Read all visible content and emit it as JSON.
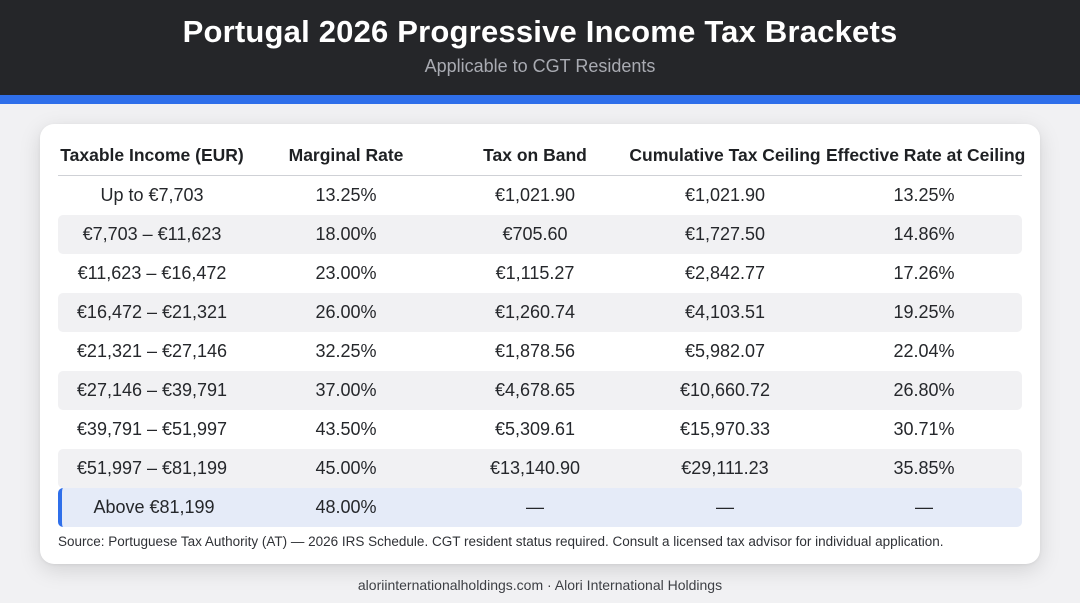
{
  "header": {
    "title": "Portugal 2026 Progressive Income Tax Brackets",
    "subtitle": "Applicable to CGT Residents"
  },
  "colors": {
    "header_bg": "#252629",
    "accent": "#2f6fea",
    "highlight_row": "#e5ebf8",
    "stripe": "#f1f1f3"
  },
  "table": {
    "columns": [
      "Taxable Income (EUR)",
      "Marginal Rate",
      "Tax on Band",
      "Cumulative Tax Ceiling",
      "Effective Rate at Ceiling"
    ],
    "rows": [
      [
        "Up to €7,703",
        "13.25%",
        "€1,021.90",
        "€1,021.90",
        "13.25%"
      ],
      [
        "€7,703 – €11,623",
        "18.00%",
        "€705.60",
        "€1,727.50",
        "14.86%"
      ],
      [
        "€11,623 – €16,472",
        "23.00%",
        "€1,115.27",
        "€2,842.77",
        "17.26%"
      ],
      [
        "€16,472 – €21,321",
        "26.00%",
        "€1,260.74",
        "€4,103.51",
        "19.25%"
      ],
      [
        "€21,321 – €27,146",
        "32.25%",
        "€1,878.56",
        "€5,982.07",
        "22.04%"
      ],
      [
        "€27,146 – €39,791",
        "37.00%",
        "€4,678.65",
        "€10,660.72",
        "26.80%"
      ],
      [
        "€39,791 – €51,997",
        "43.50%",
        "€5,309.61",
        "€15,970.33",
        "30.71%"
      ],
      [
        "€51,997 – €81,199",
        "45.00%",
        "€13,140.90",
        "€29,111.23",
        "35.85%"
      ],
      [
        "Above €81,199",
        "48.00%",
        "—",
        "—",
        "—"
      ]
    ]
  },
  "source": "Source: Portuguese Tax Authority (AT) — 2026 IRS Schedule. CGT resident status required. Consult a licensed tax advisor for individual application.",
  "footer": "aloriinternationalholdings.com · Alori International Holdings"
}
